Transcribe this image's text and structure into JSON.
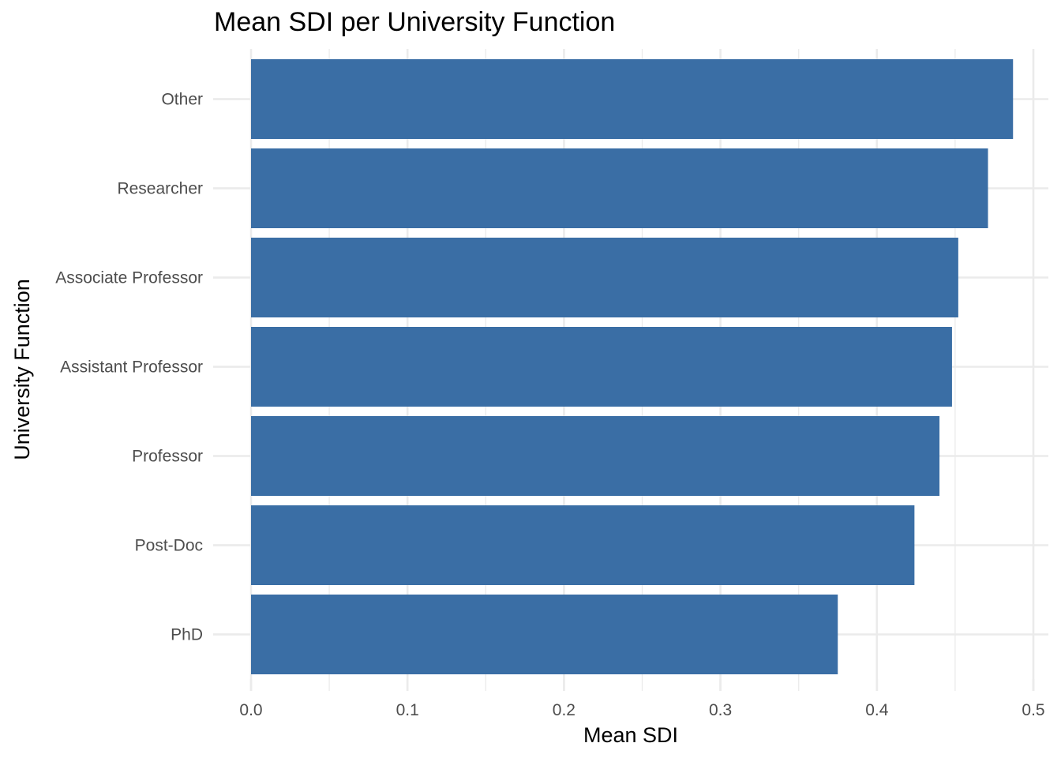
{
  "chart_data": {
    "type": "bar",
    "orientation": "horizontal",
    "title": "Mean SDI per University Function",
    "xlabel": "Mean SDI",
    "ylabel": "University Function",
    "categories": [
      "PhD",
      "Post-Doc",
      "Professor",
      "Assistant Professor",
      "Associate Professor",
      "Researcher",
      "Other"
    ],
    "values": [
      0.375,
      0.424,
      0.44,
      0.448,
      0.452,
      0.471,
      0.487
    ],
    "xlim": [
      0,
      0.5
    ],
    "xticks": [
      "0.0",
      "0.1",
      "0.2",
      "0.3",
      "0.4",
      "0.5"
    ],
    "grid": true,
    "legend": "none",
    "bar_color": "#3A6EA5"
  }
}
